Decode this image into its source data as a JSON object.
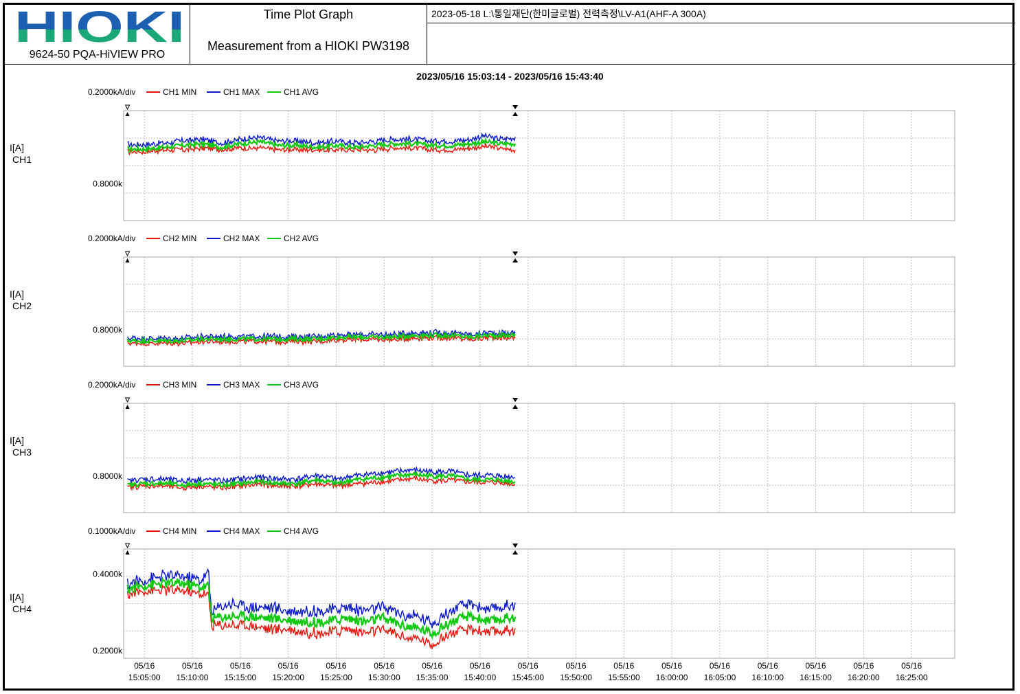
{
  "header": {
    "logo_text": "HIOKI",
    "product": "9624-50 PQA-HiVIEW PRO",
    "title": "Time Plot Graph",
    "subtitle": "Measurement from a HIOKI PW3198",
    "info": "2023-05-18   L:\\통일재단(한미글로벌) 전력측정\\LV-A1(AHF-A 300A)"
  },
  "time_range": "2023/05/16 15:03:14 - 2023/05/16 15:43:40",
  "colors": {
    "min": "#e8150c",
    "max": "#0a18c8",
    "avg": "#12c812",
    "grid": "#c0c0c0"
  },
  "chart_data": [
    {
      "type": "line",
      "ylabel": "I[A]",
      "channel": "CH1",
      "scale": "0.2000kA/div",
      "y_tick_labels": [
        "0.8000k"
      ],
      "y_ticks": [
        0.8
      ],
      "ylim": [
        0.6,
        1.2
      ],
      "xlim": [
        "15:02:50",
        "16:29:30"
      ],
      "x_tick_labels": [
        [
          "05/16",
          "15:05:00"
        ],
        [
          "05/16",
          "15:10:00"
        ],
        [
          "05/16",
          "15:15:00"
        ],
        [
          "05/16",
          "15:20:00"
        ],
        [
          "05/16",
          "15:25:00"
        ],
        [
          "05/16",
          "15:30:00"
        ],
        [
          "05/16",
          "15:35:00"
        ],
        [
          "05/16",
          "15:40:00"
        ],
        [
          "05/16",
          "15:45:00"
        ],
        [
          "05/16",
          "15:50:00"
        ],
        [
          "05/16",
          "15:55:00"
        ],
        [
          "05/16",
          "16:00:00"
        ],
        [
          "05/16",
          "16:05:00"
        ],
        [
          "05/16",
          "16:10:00"
        ],
        [
          "05/16",
          "16:15:00"
        ],
        [
          "05/16",
          "16:20:00"
        ],
        [
          "05/16",
          "16:25:00"
        ]
      ],
      "x": [
        "15:03:14",
        "15:05:00",
        "15:07:00",
        "15:09:00",
        "15:11:00",
        "15:13:00",
        "15:15:00",
        "15:17:00",
        "15:19:00",
        "15:21:00",
        "15:23:00",
        "15:25:00",
        "15:27:00",
        "15:29:00",
        "15:31:00",
        "15:33:00",
        "15:35:00",
        "15:37:00",
        "15:39:00",
        "15:40:30",
        "15:42:00",
        "15:43:40"
      ],
      "series": [
        {
          "name": "CH1 MIN",
          "values": [
            0.98,
            0.98,
            0.99,
            0.99,
            1.0,
            0.99,
            1.0,
            1.0,
            0.99,
            0.99,
            0.99,
            0.99,
            0.99,
            0.99,
            1.0,
            1.0,
            0.99,
            0.99,
            1.0,
            1.01,
            1.0,
            0.99
          ]
        },
        {
          "name": "CH1 MAX",
          "values": [
            1.01,
            1.01,
            1.02,
            1.03,
            1.04,
            1.02,
            1.04,
            1.05,
            1.03,
            1.03,
            1.02,
            1.03,
            1.02,
            1.03,
            1.04,
            1.04,
            1.03,
            1.03,
            1.04,
            1.06,
            1.04,
            1.05
          ]
        },
        {
          "name": "CH1 AVG",
          "values": [
            0.99,
            0.99,
            1.0,
            1.01,
            1.02,
            1.0,
            1.02,
            1.03,
            1.01,
            1.01,
            1.0,
            1.01,
            1.0,
            1.01,
            1.02,
            1.02,
            1.01,
            1.01,
            1.02,
            1.03,
            1.02,
            1.02
          ]
        }
      ]
    },
    {
      "type": "line",
      "ylabel": "I[A]",
      "channel": "CH2",
      "scale": "0.2000kA/div",
      "y_tick_labels": [
        "0.8000k"
      ],
      "y_ticks": [
        0.8
      ],
      "ylim": [
        0.6,
        1.2
      ],
      "xlim": [
        "15:02:50",
        "16:29:30"
      ],
      "x_tick_labels": [
        [
          "05/16",
          "15:05:00"
        ],
        [
          "05/16",
          "15:10:00"
        ],
        [
          "05/16",
          "15:15:00"
        ],
        [
          "05/16",
          "15:20:00"
        ],
        [
          "05/16",
          "15:25:00"
        ],
        [
          "05/16",
          "15:30:00"
        ],
        [
          "05/16",
          "15:35:00"
        ],
        [
          "05/16",
          "15:40:00"
        ],
        [
          "05/16",
          "15:45:00"
        ],
        [
          "05/16",
          "15:50:00"
        ],
        [
          "05/16",
          "15:55:00"
        ],
        [
          "05/16",
          "16:00:00"
        ],
        [
          "05/16",
          "16:05:00"
        ],
        [
          "05/16",
          "16:10:00"
        ],
        [
          "05/16",
          "16:15:00"
        ],
        [
          "05/16",
          "16:20:00"
        ],
        [
          "05/16",
          "16:25:00"
        ]
      ],
      "x": [
        "15:03:14",
        "15:05:00",
        "15:07:00",
        "15:09:00",
        "15:11:00",
        "15:13:00",
        "15:15:00",
        "15:17:00",
        "15:19:00",
        "15:21:00",
        "15:23:00",
        "15:25:00",
        "15:27:00",
        "15:29:00",
        "15:31:00",
        "15:33:00",
        "15:35:00",
        "15:37:00",
        "15:39:00",
        "15:40:30",
        "15:42:00",
        "15:43:40"
      ],
      "series": [
        {
          "name": "CH2 MIN",
          "values": [
            0.73,
            0.73,
            0.73,
            0.73,
            0.74,
            0.74,
            0.74,
            0.74,
            0.74,
            0.74,
            0.74,
            0.75,
            0.75,
            0.75,
            0.75,
            0.76,
            0.76,
            0.76,
            0.75,
            0.76,
            0.76,
            0.76
          ]
        },
        {
          "name": "CH2 MAX",
          "values": [
            0.75,
            0.75,
            0.75,
            0.75,
            0.76,
            0.76,
            0.76,
            0.76,
            0.76,
            0.76,
            0.76,
            0.77,
            0.77,
            0.77,
            0.77,
            0.78,
            0.78,
            0.78,
            0.77,
            0.78,
            0.78,
            0.78
          ]
        },
        {
          "name": "CH2 AVG",
          "values": [
            0.74,
            0.74,
            0.74,
            0.74,
            0.75,
            0.75,
            0.75,
            0.75,
            0.75,
            0.75,
            0.75,
            0.76,
            0.76,
            0.76,
            0.76,
            0.77,
            0.77,
            0.77,
            0.76,
            0.77,
            0.77,
            0.77
          ]
        }
      ]
    },
    {
      "type": "line",
      "ylabel": "I[A]",
      "channel": "CH3",
      "scale": "0.2000kA/div",
      "y_tick_labels": [
        "0.8000k"
      ],
      "y_ticks": [
        0.8
      ],
      "ylim": [
        0.6,
        1.2
      ],
      "xlim": [
        "15:02:50",
        "16:29:30"
      ],
      "x_tick_labels": [
        [
          "05/16",
          "15:05:00"
        ],
        [
          "05/16",
          "15:10:00"
        ],
        [
          "05/16",
          "15:15:00"
        ],
        [
          "05/16",
          "15:20:00"
        ],
        [
          "05/16",
          "15:25:00"
        ],
        [
          "05/16",
          "15:30:00"
        ],
        [
          "05/16",
          "15:35:00"
        ],
        [
          "05/16",
          "15:40:00"
        ],
        [
          "05/16",
          "15:45:00"
        ],
        [
          "05/16",
          "15:50:00"
        ],
        [
          "05/16",
          "15:55:00"
        ],
        [
          "05/16",
          "16:00:00"
        ],
        [
          "05/16",
          "16:05:00"
        ],
        [
          "05/16",
          "16:10:00"
        ],
        [
          "05/16",
          "16:15:00"
        ],
        [
          "05/16",
          "16:20:00"
        ],
        [
          "05/16",
          "16:25:00"
        ]
      ],
      "x": [
        "15:03:14",
        "15:05:00",
        "15:07:00",
        "15:09:00",
        "15:11:00",
        "15:13:00",
        "15:15:00",
        "15:17:00",
        "15:19:00",
        "15:21:00",
        "15:23:00",
        "15:25:00",
        "15:27:00",
        "15:29:00",
        "15:31:00",
        "15:33:00",
        "15:35:00",
        "15:37:00",
        "15:39:00",
        "15:40:30",
        "15:42:00",
        "15:43:40"
      ],
      "series": [
        {
          "name": "CH3 MIN",
          "values": [
            0.74,
            0.75,
            0.75,
            0.74,
            0.75,
            0.74,
            0.75,
            0.76,
            0.75,
            0.75,
            0.76,
            0.75,
            0.76,
            0.77,
            0.78,
            0.79,
            0.78,
            0.78,
            0.77,
            0.77,
            0.77,
            0.76
          ]
        },
        {
          "name": "CH3 MAX",
          "values": [
            0.77,
            0.78,
            0.78,
            0.77,
            0.78,
            0.77,
            0.78,
            0.79,
            0.78,
            0.78,
            0.8,
            0.78,
            0.8,
            0.81,
            0.82,
            0.83,
            0.82,
            0.82,
            0.8,
            0.8,
            0.8,
            0.79
          ]
        },
        {
          "name": "CH3 AVG",
          "values": [
            0.75,
            0.76,
            0.76,
            0.75,
            0.76,
            0.75,
            0.76,
            0.77,
            0.76,
            0.76,
            0.78,
            0.76,
            0.78,
            0.79,
            0.8,
            0.81,
            0.8,
            0.8,
            0.78,
            0.78,
            0.78,
            0.77
          ]
        }
      ]
    },
    {
      "type": "line",
      "ylabel": "I[A]",
      "channel": "CH4",
      "scale": "0.1000kA/div",
      "y_tick_labels": [
        "0.4000k",
        "0.2000k"
      ],
      "y_ticks": [
        0.4,
        0.2
      ],
      "ylim": [
        0.18,
        0.465
      ],
      "xlim": [
        "15:02:50",
        "16:29:30"
      ],
      "x_tick_labels": [
        [
          "05/16",
          "15:05:00"
        ],
        [
          "05/16",
          "15:10:00"
        ],
        [
          "05/16",
          "15:15:00"
        ],
        [
          "05/16",
          "15:20:00"
        ],
        [
          "05/16",
          "15:25:00"
        ],
        [
          "05/16",
          "15:30:00"
        ],
        [
          "05/16",
          "15:35:00"
        ],
        [
          "05/16",
          "15:40:00"
        ],
        [
          "05/16",
          "15:45:00"
        ],
        [
          "05/16",
          "15:50:00"
        ],
        [
          "05/16",
          "15:55:00"
        ],
        [
          "05/16",
          "16:00:00"
        ],
        [
          "05/16",
          "16:05:00"
        ],
        [
          "05/16",
          "16:10:00"
        ],
        [
          "05/16",
          "16:15:00"
        ],
        [
          "05/16",
          "16:20:00"
        ],
        [
          "05/16",
          "16:25:00"
        ]
      ],
      "x": [
        "15:03:14",
        "15:05:00",
        "15:07:00",
        "15:09:00",
        "15:11:00",
        "15:11:40",
        "15:12:00",
        "15:14:00",
        "15:16:00",
        "15:18:00",
        "15:20:00",
        "15:22:00",
        "15:24:00",
        "15:26:00",
        "15:28:00",
        "15:30:00",
        "15:32:00",
        "15:34:00",
        "15:35:00",
        "15:37:00",
        "15:39:00",
        "15:41:00",
        "15:43:40"
      ],
      "series": [
        {
          "name": "CH4 MIN",
          "values": [
            0.35,
            0.36,
            0.36,
            0.36,
            0.35,
            0.35,
            0.27,
            0.27,
            0.27,
            0.26,
            0.26,
            0.25,
            0.25,
            0.26,
            0.25,
            0.26,
            0.24,
            0.23,
            0.22,
            0.25,
            0.26,
            0.25,
            0.26
          ]
        },
        {
          "name": "CH4 MAX",
          "values": [
            0.37,
            0.38,
            0.39,
            0.39,
            0.38,
            0.4,
            0.3,
            0.32,
            0.31,
            0.31,
            0.3,
            0.3,
            0.3,
            0.31,
            0.3,
            0.31,
            0.29,
            0.28,
            0.27,
            0.3,
            0.32,
            0.3,
            0.32
          ]
        },
        {
          "name": "CH4 AVG",
          "values": [
            0.36,
            0.37,
            0.375,
            0.375,
            0.365,
            0.37,
            0.285,
            0.29,
            0.29,
            0.285,
            0.28,
            0.275,
            0.275,
            0.285,
            0.275,
            0.285,
            0.265,
            0.255,
            0.245,
            0.275,
            0.29,
            0.275,
            0.29
          ]
        }
      ]
    }
  ]
}
